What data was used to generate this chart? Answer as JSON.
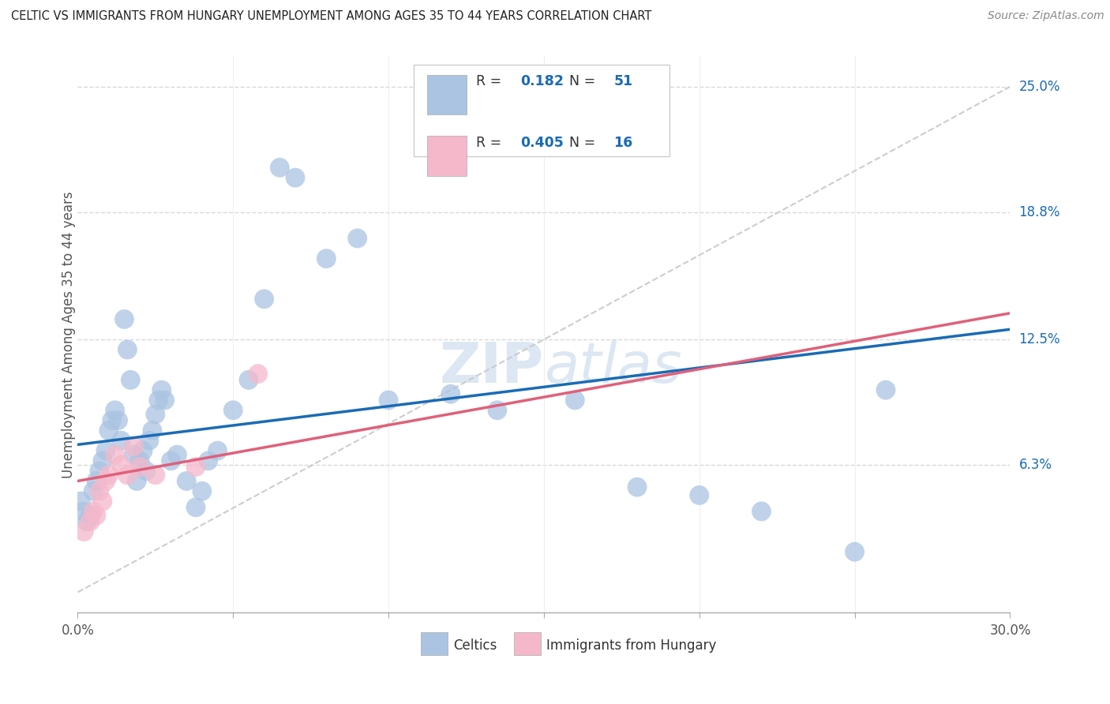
{
  "title": "CELTIC VS IMMIGRANTS FROM HUNGARY UNEMPLOYMENT AMONG AGES 35 TO 44 YEARS CORRELATION CHART",
  "source": "Source: ZipAtlas.com",
  "ylabel": "Unemployment Among Ages 35 to 44 years",
  "xlim": [
    0.0,
    0.3
  ],
  "ylim": [
    -0.01,
    0.265
  ],
  "ytick_positions": [
    0.063,
    0.125,
    0.188,
    0.25
  ],
  "ytick_labels": [
    "6.3%",
    "12.5%",
    "18.8%",
    "25.0%"
  ],
  "celtics_color": "#aac4e2",
  "hungary_color": "#f5b8cb",
  "celtics_line_color": "#1a6bb5",
  "hungary_line_color": "#e0607a",
  "dashed_line_color": "#c8c8c8",
  "R_celtics": "0.182",
  "N_celtics": "51",
  "R_hungary": "0.405",
  "N_hungary": "16",
  "watermark_zip": "ZIP",
  "watermark_atlas": "atlas",
  "grid_color": "#d8d8d8",
  "background_color": "#ffffff",
  "celtics_x": [
    0.001,
    0.002,
    0.003,
    0.004,
    0.005,
    0.006,
    0.007,
    0.008,
    0.009,
    0.01,
    0.011,
    0.012,
    0.013,
    0.014,
    0.015,
    0.016,
    0.017,
    0.018,
    0.019,
    0.02,
    0.021,
    0.022,
    0.023,
    0.024,
    0.025,
    0.026,
    0.027,
    0.028,
    0.03,
    0.032,
    0.035,
    0.038,
    0.04,
    0.042,
    0.045,
    0.05,
    0.055,
    0.06,
    0.065,
    0.07,
    0.08,
    0.09,
    0.1,
    0.12,
    0.135,
    0.16,
    0.18,
    0.2,
    0.22,
    0.25,
    0.26
  ],
  "celtics_y": [
    0.045,
    0.04,
    0.035,
    0.038,
    0.05,
    0.055,
    0.06,
    0.065,
    0.07,
    0.08,
    0.085,
    0.09,
    0.085,
    0.075,
    0.135,
    0.12,
    0.105,
    0.068,
    0.055,
    0.065,
    0.07,
    0.06,
    0.075,
    0.08,
    0.088,
    0.095,
    0.1,
    0.095,
    0.065,
    0.068,
    0.055,
    0.042,
    0.05,
    0.065,
    0.07,
    0.09,
    0.105,
    0.145,
    0.21,
    0.205,
    0.165,
    0.175,
    0.095,
    0.098,
    0.09,
    0.095,
    0.052,
    0.048,
    0.04,
    0.02,
    0.1
  ],
  "hungary_x": [
    0.002,
    0.004,
    0.005,
    0.006,
    0.007,
    0.008,
    0.009,
    0.01,
    0.012,
    0.014,
    0.016,
    0.018,
    0.02,
    0.025,
    0.038,
    0.058
  ],
  "hungary_y": [
    0.03,
    0.035,
    0.04,
    0.038,
    0.05,
    0.045,
    0.055,
    0.058,
    0.068,
    0.063,
    0.058,
    0.072,
    0.062,
    0.058,
    0.062,
    0.108
  ],
  "celtics_line_x0": 0.0,
  "celtics_line_y0": 0.073,
  "celtics_line_x1": 0.3,
  "celtics_line_y1": 0.13,
  "hungary_line_x0": 0.0,
  "hungary_line_y0": 0.055,
  "hungary_line_x1": 0.3,
  "hungary_line_y1": 0.138
}
